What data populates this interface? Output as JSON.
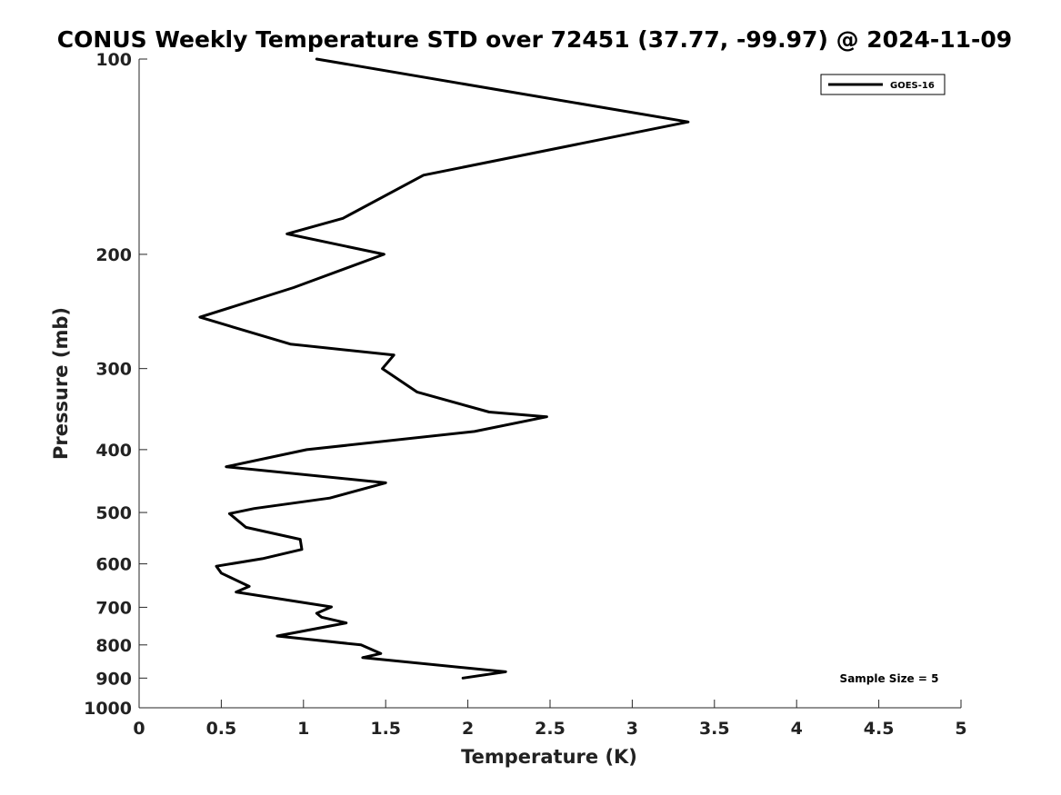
{
  "chart_data": {
    "type": "line",
    "title": "CONUS Weekly Temperature STD over 72451 (37.77, -99.97) @ 2024-11-09",
    "xlabel": "Temperature (K)",
    "ylabel": "Pressure (mb)",
    "xlim": [
      0,
      5
    ],
    "ylim": [
      1000,
      100
    ],
    "yscale": "log",
    "y_reversed": true,
    "x_ticks": [
      "0",
      "0.5",
      "1",
      "1.5",
      "2",
      "2.5",
      "3",
      "3.5",
      "4",
      "4.5",
      "5"
    ],
    "x_tick_values": [
      0,
      0.5,
      1,
      1.5,
      2,
      2.5,
      3,
      3.5,
      4,
      4.5,
      5
    ],
    "y_ticks": [
      "100",
      "200",
      "300",
      "400",
      "500",
      "600",
      "700",
      "800",
      "900",
      "1000"
    ],
    "y_tick_values": [
      100,
      200,
      300,
      400,
      500,
      600,
      700,
      800,
      900,
      1000
    ],
    "grid": false,
    "legend_position": "top-right",
    "annotation": "Sample Size = 5",
    "line_color": "#000000",
    "series": [
      {
        "name": "GOES-16",
        "x": [
          1.08,
          3.34,
          1.73,
          1.24,
          0.9,
          1.49,
          0.94,
          0.37,
          0.92,
          1.55,
          1.48,
          1.69,
          2.13,
          2.48,
          2.04,
          1.02,
          0.53,
          1.5,
          1.16,
          0.7,
          0.55,
          0.65,
          0.98,
          0.99,
          0.75,
          0.47,
          0.5,
          0.67,
          0.59,
          1.17,
          1.08,
          1.11,
          1.26,
          0.84,
          1.35,
          1.47,
          1.36,
          2.23,
          1.97
        ],
        "y": [
          100,
          125,
          151,
          176,
          186,
          200,
          225,
          250,
          275,
          286,
          300,
          326,
          350,
          356,
          375,
          400,
          425,
          450,
          475,
          493,
          502,
          527,
          550,
          570,
          589,
          605,
          620,
          650,
          663,
          699,
          715,
          725,
          740,
          775,
          800,
          825,
          837,
          880,
          900
        ]
      }
    ]
  }
}
